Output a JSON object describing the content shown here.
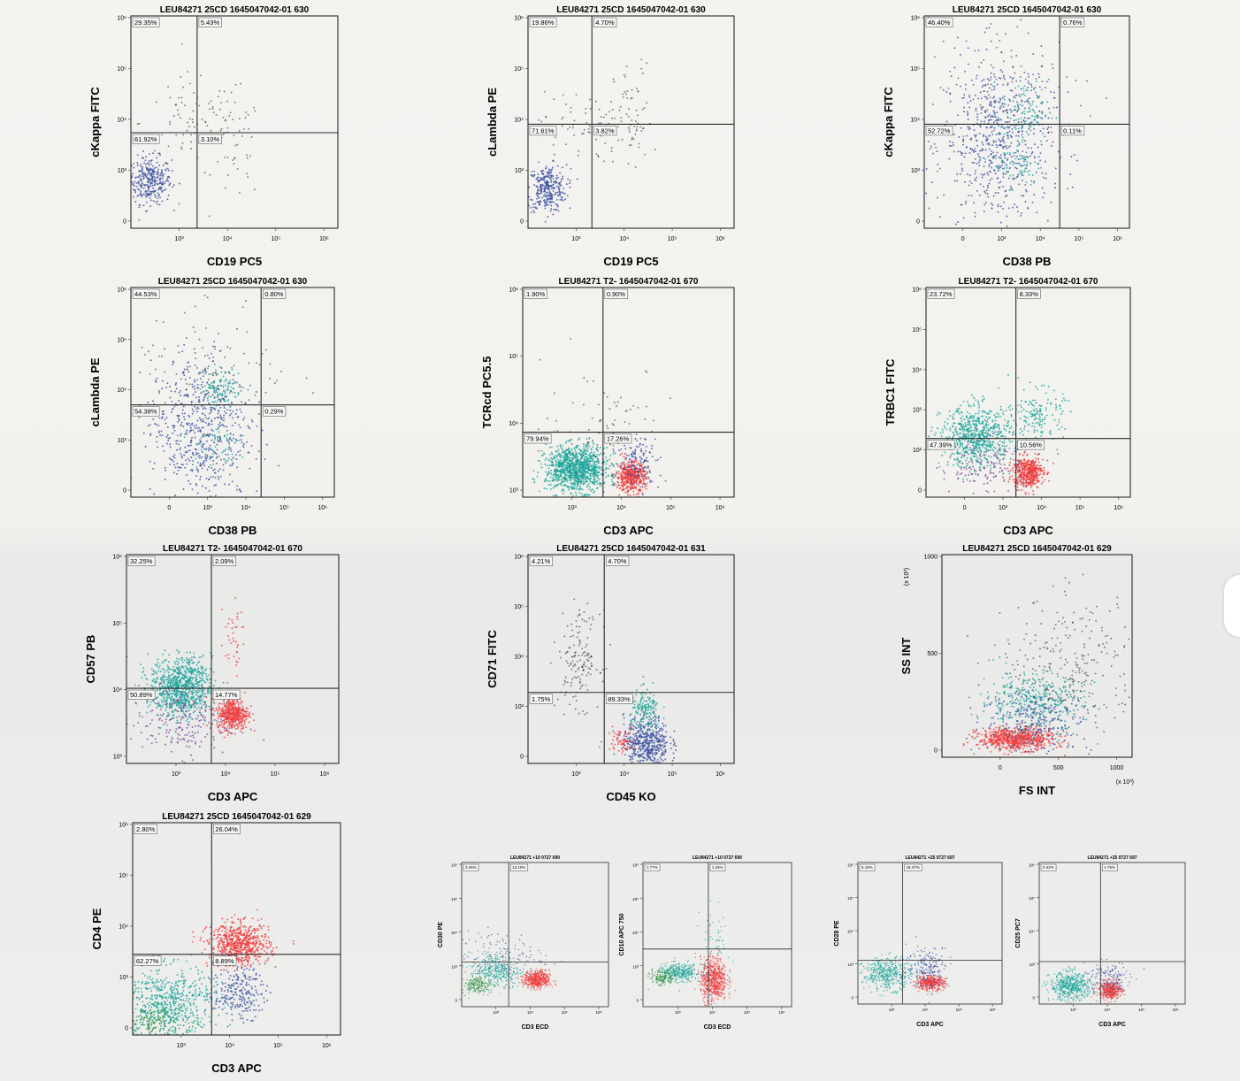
{
  "colors": {
    "teal": "#1aa59a",
    "red": "#f03c3c",
    "blue": "#3b4fa0",
    "purple": "#7b4a9a",
    "green": "#2f8f3a",
    "black": "#222222",
    "frame": "#2a2a2a"
  },
  "chart_data": [
    {
      "type": "scatter",
      "title": "LEU84271 25CD 1645047042-01 630",
      "xlabel": "CD19 PC5",
      "ylabel": "cKappa FITC",
      "xticks": [
        "10³",
        "10⁴",
        "10⁵",
        "10⁶"
      ],
      "yticks": [
        "10⁶",
        "10⁵",
        "10⁴",
        "10³",
        "0"
      ],
      "quadrants": [
        "29.35%",
        "5.43%",
        "61.92%",
        "3.10%"
      ],
      "populations": [
        {
          "color": "blue",
          "x": 2.1,
          "y": 2.9,
          "n": 320,
          "sx": 0.22,
          "sy": 0.22
        },
        {
          "color": "black",
          "x": 3.0,
          "y": 4.0,
          "n": 80,
          "sx": 0.55,
          "sy": 0.45
        },
        {
          "color": "black",
          "x": 3.9,
          "y": 3.5,
          "n": 45,
          "sx": 0.25,
          "sy": 0.5
        }
      ]
    },
    {
      "type": "scatter",
      "title": "LEU84271 25CD 1645047042-01 630",
      "xlabel": "CD19 PC5",
      "ylabel": "cLambda PE",
      "xticks": [
        "10³",
        "10⁴",
        "10⁵",
        "10⁶"
      ],
      "yticks": [
        "10⁶",
        "10⁵",
        "10⁴",
        "10³",
        "0"
      ],
      "quadrants": [
        "19.86%",
        "4.70%",
        "71.61%",
        "3.82%"
      ],
      "populations": [
        {
          "color": "blue",
          "x": 2.1,
          "y": 2.75,
          "n": 320,
          "sx": 0.2,
          "sy": 0.22
        },
        {
          "color": "black",
          "x": 2.8,
          "y": 3.9,
          "n": 70,
          "sx": 0.45,
          "sy": 0.35
        },
        {
          "color": "black",
          "x": 3.9,
          "y": 4.0,
          "n": 60,
          "sx": 0.2,
          "sy": 0.55
        }
      ]
    },
    {
      "type": "scatter",
      "title": "LEU84271 25CD 1645047042-01 630",
      "xlabel": "CD38 PB",
      "ylabel": "cKappa FITC",
      "xticks": [
        "0",
        "10³",
        "10⁴",
        "10⁵",
        "10⁶"
      ],
      "yticks": [
        "10⁶",
        "10⁵",
        "10⁴",
        "10³",
        "0"
      ],
      "quadrants": [
        "46.40%",
        "0.76%",
        "52.72%",
        "0.11%"
      ],
      "populations": [
        {
          "color": "blue",
          "x": 3.3,
          "y": 3.6,
          "n": 650,
          "sx": 0.55,
          "sy": 0.8
        },
        {
          "color": "teal",
          "x": 3.85,
          "y": 4.2,
          "n": 110,
          "sx": 0.25,
          "sy": 0.3
        },
        {
          "color": "teal",
          "x": 3.7,
          "y": 3.2,
          "n": 70,
          "sx": 0.25,
          "sy": 0.2
        },
        {
          "color": "black",
          "x": 3.6,
          "y": 4.6,
          "n": 100,
          "sx": 0.9,
          "sy": 0.7
        }
      ]
    },
    {
      "type": "scatter",
      "title": "LEU84271 25CD 1645047042-01 630",
      "xlabel": "CD38 PB",
      "ylabel": "cLambda PE",
      "xticks": [
        "0",
        "10³",
        "10⁴",
        "10⁵",
        "10⁶"
      ],
      "yticks": [
        "10⁶",
        "10⁵",
        "10⁴",
        "10³",
        "0"
      ],
      "quadrants": [
        "44.53%",
        "0.80%",
        "54.38%",
        "0.29%"
      ],
      "populations": [
        {
          "color": "blue",
          "x": 3.2,
          "y": 3.3,
          "n": 600,
          "sx": 0.5,
          "sy": 0.7
        },
        {
          "color": "teal",
          "x": 3.65,
          "y": 4.1,
          "n": 120,
          "sx": 0.22,
          "sy": 0.2
        },
        {
          "color": "teal",
          "x": 3.5,
          "y": 3.0,
          "n": 60,
          "sx": 0.25,
          "sy": 0.2
        },
        {
          "color": "black",
          "x": 3.5,
          "y": 4.4,
          "n": 100,
          "sx": 0.8,
          "sy": 0.7
        }
      ]
    },
    {
      "type": "scatter",
      "title": "LEU84271 T2- 1645047042-01 670",
      "xlabel": "CD3 APC",
      "ylabel": "TCRcd PC5.5",
      "xticks": [
        "10³",
        "10⁴",
        "10⁵",
        "10⁶"
      ],
      "yticks": [
        "10⁶",
        "10⁵",
        "10⁴",
        "10³"
      ],
      "quadrants": [
        "1.90%",
        "0.90%",
        "79.94%",
        "17.26%"
      ],
      "populations": [
        {
          "color": "teal",
          "x": 2.95,
          "y": 2.45,
          "n": 1100,
          "sx": 0.3,
          "sy": 0.22
        },
        {
          "color": "red",
          "x": 4.0,
          "y": 2.3,
          "n": 450,
          "sx": 0.14,
          "sy": 0.15
        },
        {
          "color": "blue",
          "x": 4.15,
          "y": 2.6,
          "n": 120,
          "sx": 0.2,
          "sy": 0.25
        },
        {
          "color": "black",
          "x": 3.5,
          "y": 3.3,
          "n": 90,
          "sx": 0.6,
          "sy": 0.6
        }
      ]
    },
    {
      "type": "scatter",
      "title": "LEU84271 T2- 1645047042-01 670",
      "xlabel": "CD3 APC",
      "ylabel": "TRBC1 FITC",
      "xticks": [
        "0",
        "10³",
        "10⁴",
        "10⁵",
        "10⁶"
      ],
      "yticks": [
        "10⁶",
        "10⁵",
        "10⁴",
        "10³",
        "10²",
        "0"
      ],
      "quadrants": [
        "23.72%",
        "8.33%",
        "47.39%",
        "10.56%"
      ],
      "populations": [
        {
          "color": "teal",
          "x": 3.0,
          "y": 3.0,
          "n": 700,
          "sx": 0.35,
          "sy": 0.3
        },
        {
          "color": "red",
          "x": 4.0,
          "y": 2.3,
          "n": 450,
          "sx": 0.15,
          "sy": 0.15
        },
        {
          "color": "teal",
          "x": 4.2,
          "y": 3.45,
          "n": 150,
          "sx": 0.25,
          "sy": 0.25
        },
        {
          "color": "purple",
          "x": 3.2,
          "y": 2.4,
          "n": 150,
          "sx": 0.5,
          "sy": 0.3
        }
      ]
    },
    {
      "type": "scatter",
      "title": "LEU84271 T2- 1645047042-01 670",
      "xlabel": "CD3 APC",
      "ylabel": "CD57 PB",
      "xticks": [
        "10³",
        "10⁴",
        "10⁵",
        "10⁶"
      ],
      "yticks": [
        "10⁶",
        "10⁵",
        "10⁴",
        "10³"
      ],
      "quadrants": [
        "32.25%",
        "2.09%",
        "50.89%",
        "14.77%"
      ],
      "populations": [
        {
          "color": "teal",
          "x": 2.95,
          "y": 3.45,
          "n": 900,
          "sx": 0.3,
          "sy": 0.28
        },
        {
          "color": "red",
          "x": 3.95,
          "y": 2.95,
          "n": 450,
          "sx": 0.15,
          "sy": 0.15
        },
        {
          "color": "purple",
          "x": 2.9,
          "y": 2.8,
          "n": 220,
          "sx": 0.5,
          "sy": 0.35
        },
        {
          "color": "red",
          "x": 3.95,
          "y": 4.4,
          "n": 40,
          "sx": 0.12,
          "sy": 0.4
        }
      ]
    },
    {
      "type": "scatter",
      "title": "LEU84271 25CD 1645047042-01 631",
      "xlabel": "CD45 KO",
      "ylabel": "CD71 FITC",
      "xticks": [
        "10³",
        "10⁴",
        "10⁵",
        "10⁶"
      ],
      "yticks": [
        "10⁶",
        "10⁵",
        "10⁴",
        "10³",
        "0"
      ],
      "quadrants": [
        "4.21%",
        "4.70%",
        "1.75%",
        "89.33%"
      ],
      "populations": [
        {
          "color": "blue",
          "x": 4.3,
          "y": 2.4,
          "n": 500,
          "sx": 0.22,
          "sy": 0.25
        },
        {
          "color": "teal",
          "x": 4.3,
          "y": 3.0,
          "n": 150,
          "sx": 0.15,
          "sy": 0.2
        },
        {
          "color": "red",
          "x": 3.8,
          "y": 2.45,
          "n": 60,
          "sx": 0.15,
          "sy": 0.12
        },
        {
          "color": "black",
          "x": 3.0,
          "y": 4.0,
          "n": 150,
          "sx": 0.2,
          "sy": 0.45
        }
      ]
    },
    {
      "type": "scatter",
      "title": "LEU84271 25CD 1645047042-01 629",
      "xlabel": "FS INT",
      "ylabel": "SS INT",
      "xticks": [
        "0",
        "500",
        "1000"
      ],
      "yticks": [
        "1000",
        "500",
        "0"
      ],
      "xunit": "(x 10³)",
      "yunit": "(x 10³)",
      "populations": [
        {
          "color": "red",
          "x": 430,
          "y": 100,
          "n": 700,
          "sx": 110,
          "sy": 30
        },
        {
          "color": "teal",
          "x": 520,
          "y": 300,
          "n": 350,
          "sx": 150,
          "sy": 80
        },
        {
          "color": "blue",
          "x": 550,
          "y": 200,
          "n": 250,
          "sx": 160,
          "sy": 90
        },
        {
          "color": "black",
          "x": 750,
          "y": 500,
          "n": 250,
          "sx": 200,
          "sy": 180
        }
      ]
    },
    {
      "type": "scatter",
      "title": "LEU84271 25CD 1645047042-01 629",
      "xlabel": "CD3 APC",
      "ylabel": "CD4 PE",
      "xticks": [
        "10³",
        "10⁴",
        "10⁵",
        "10⁶"
      ],
      "yticks": [
        "10⁶",
        "10⁵",
        "10⁴",
        "10³",
        "0"
      ],
      "quadrants": [
        "2.80%",
        "26.04%",
        "62.27%",
        "8.89%"
      ],
      "populations": [
        {
          "color": "red",
          "x": 4.0,
          "y": 3.7,
          "n": 650,
          "sx": 0.3,
          "sy": 0.2
        },
        {
          "color": "teal",
          "x": 2.6,
          "y": 2.6,
          "n": 600,
          "sx": 0.45,
          "sy": 0.35
        },
        {
          "color": "green",
          "x": 2.3,
          "y": 2.2,
          "n": 120,
          "sx": 0.3,
          "sy": 0.2
        },
        {
          "color": "blue",
          "x": 4.0,
          "y": 2.8,
          "n": 220,
          "sx": 0.25,
          "sy": 0.25
        }
      ]
    },
    {
      "type": "scatter",
      "title": "LEU84271 +10 0727 690",
      "xlabel": "CD3 ECD",
      "ylabel": "CD30 PE",
      "xticks": [
        "10³",
        "10⁴",
        "10⁵",
        "10⁶"
      ],
      "yticks": [
        "10⁶",
        "10⁵",
        "10⁴",
        "10³",
        "0"
      ],
      "quadrants": [
        "3.46%",
        "13.10%",
        "",
        ""
      ],
      "populations": [
        {
          "color": "red",
          "x": 4.0,
          "y": 2.75,
          "n": 500,
          "sx": 0.18,
          "sy": 0.12
        },
        {
          "color": "teal",
          "x": 2.85,
          "y": 3.0,
          "n": 350,
          "sx": 0.35,
          "sy": 0.25
        },
        {
          "color": "green",
          "x": 2.3,
          "y": 2.6,
          "n": 150,
          "sx": 0.2,
          "sy": 0.12
        },
        {
          "color": "blue",
          "x": 3.0,
          "y": 3.4,
          "n": 120,
          "sx": 0.6,
          "sy": 0.35
        }
      ]
    },
    {
      "type": "scatter",
      "title": "LEU84271 +10 0727 690",
      "xlabel": "CD3 ECD",
      "ylabel": "CD10 APC 750",
      "xticks": [
        "10³",
        "10⁴",
        "10⁵",
        "10⁶"
      ],
      "yticks": [
        "10⁶",
        "10⁵",
        "10⁴",
        "10³",
        "0"
      ],
      "quadrants": [
        "1.77%",
        "1.16%",
        "",
        ""
      ],
      "populations": [
        {
          "color": "red",
          "x": 3.85,
          "y": 2.75,
          "n": 650,
          "sx": 0.18,
          "sy": 0.3
        },
        {
          "color": "teal",
          "x": 2.9,
          "y": 2.95,
          "n": 350,
          "sx": 0.3,
          "sy": 0.12
        },
        {
          "color": "green",
          "x": 2.45,
          "y": 2.8,
          "n": 130,
          "sx": 0.18,
          "sy": 0.12
        },
        {
          "color": "teal",
          "x": 3.9,
          "y": 3.9,
          "n": 50,
          "sx": 0.2,
          "sy": 0.45
        }
      ]
    },
    {
      "type": "scatter",
      "title": "LEU84271 +25 0727 697",
      "xlabel": "CD3 APC",
      "ylabel": "CD28 PE",
      "xticks": [
        "10³",
        "10⁴",
        "10⁵",
        "10⁶"
      ],
      "yticks": [
        "10⁶",
        "10⁵",
        "10⁴",
        "10³",
        "0"
      ],
      "quadrants": [
        "5.16%",
        "18.47%",
        "",
        ""
      ],
      "populations": [
        {
          "color": "teal",
          "x": 2.75,
          "y": 2.85,
          "n": 450,
          "sx": 0.35,
          "sy": 0.22
        },
        {
          "color": "red",
          "x": 3.95,
          "y": 2.6,
          "n": 450,
          "sx": 0.2,
          "sy": 0.1
        },
        {
          "color": "blue",
          "x": 3.9,
          "y": 3.05,
          "n": 200,
          "sx": 0.3,
          "sy": 0.3
        }
      ]
    },
    {
      "type": "scatter",
      "title": "LEU84271 +25 0727 697",
      "xlabel": "CD3 APC",
      "ylabel": "CD25 PC7",
      "xticks": [
        "10³",
        "10⁴",
        "10⁵",
        "10⁶"
      ],
      "yticks": [
        "10⁶",
        "10⁵",
        "10⁴",
        "10³",
        "0"
      ],
      "quadrants": [
        "0.42%",
        "4.75%",
        "",
        ""
      ],
      "populations": [
        {
          "color": "teal",
          "x": 2.8,
          "y": 2.5,
          "n": 550,
          "sx": 0.3,
          "sy": 0.2
        },
        {
          "color": "red",
          "x": 3.9,
          "y": 2.4,
          "n": 450,
          "sx": 0.15,
          "sy": 0.12
        },
        {
          "color": "blue",
          "x": 3.85,
          "y": 2.7,
          "n": 150,
          "sx": 0.3,
          "sy": 0.25
        }
      ]
    }
  ]
}
